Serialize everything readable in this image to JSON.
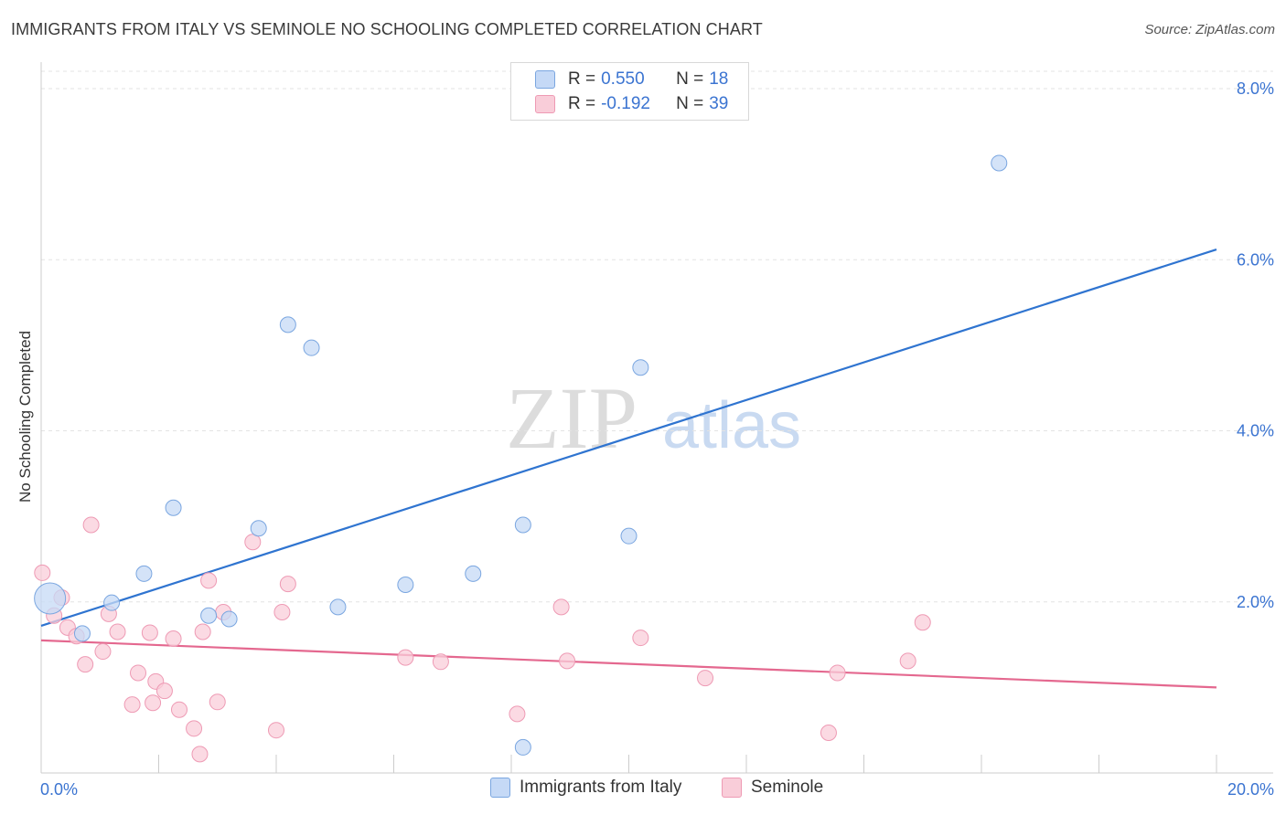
{
  "title": "IMMIGRANTS FROM ITALY VS SEMINOLE NO SCHOOLING COMPLETED CORRELATION CHART",
  "source": "Source: ZipAtlas.com",
  "watermark": {
    "zip": "ZIP",
    "atlas": "atlas"
  },
  "legend": {
    "r_label": "R =",
    "n_label": "N =",
    "rows": [
      {
        "r": "0.550",
        "n": "18",
        "swatch_fill": "#c5d9f6",
        "swatch_stroke": "#7aa6e0"
      },
      {
        "r": "-0.192",
        "n": "39",
        "swatch_fill": "#f9cdd9",
        "swatch_stroke": "#ee9ab4"
      }
    ]
  },
  "bottom_legend": [
    {
      "label": "Immigrants from Italy",
      "fill": "#c5d9f6",
      "stroke": "#7aa6e0"
    },
    {
      "label": "Seminole",
      "fill": "#f9cdd9",
      "stroke": "#ee9ab4"
    }
  ],
  "chart_data": {
    "type": "scatter",
    "title": "IMMIGRANTS FROM ITALY VS SEMINOLE NO SCHOOLING COMPLETED CORRELATION CHART",
    "xlabel": "",
    "ylabel": "No Schooling Completed",
    "xlim": [
      0,
      20
    ],
    "ylim": [
      0,
      8.2
    ],
    "x_tick_labels": [
      "0.0%",
      "20.0%"
    ],
    "y_ticks": [
      2,
      4,
      6,
      8
    ],
    "y_tick_labels": [
      "2.0%",
      "4.0%",
      "6.0%",
      "8.0%"
    ],
    "series": [
      {
        "name": "Immigrants from Italy",
        "color": "#7aa6e0",
        "fill": "#c5d9f6",
        "line_color": "#2f74d0",
        "trend": {
          "x": [
            0,
            20
          ],
          "y": [
            1.72,
            6.12
          ]
        },
        "points": [
          {
            "x": 0.15,
            "y": 2.04,
            "big": true
          },
          {
            "x": 0.7,
            "y": 1.63
          },
          {
            "x": 1.2,
            "y": 1.99
          },
          {
            "x": 1.75,
            "y": 2.33
          },
          {
            "x": 2.25,
            "y": 3.1
          },
          {
            "x": 2.85,
            "y": 1.84
          },
          {
            "x": 3.2,
            "y": 1.8
          },
          {
            "x": 3.7,
            "y": 2.86
          },
          {
            "x": 4.2,
            "y": 5.24
          },
          {
            "x": 4.6,
            "y": 4.97
          },
          {
            "x": 5.05,
            "y": 1.94
          },
          {
            "x": 6.2,
            "y": 2.2
          },
          {
            "x": 7.35,
            "y": 2.33
          },
          {
            "x": 8.2,
            "y": 0.3
          },
          {
            "x": 8.2,
            "y": 2.9
          },
          {
            "x": 10.0,
            "y": 2.77
          },
          {
            "x": 10.2,
            "y": 4.74
          },
          {
            "x": 16.3,
            "y": 7.13
          }
        ]
      },
      {
        "name": "Seminole",
        "color": "#ee9ab4",
        "fill": "#f9cdd9",
        "line_color": "#e4688f",
        "trend": {
          "x": [
            0,
            20
          ],
          "y": [
            1.55,
            1.0
          ]
        },
        "points": [
          {
            "x": 0.02,
            "y": 2.34
          },
          {
            "x": 0.22,
            "y": 1.84
          },
          {
            "x": 0.35,
            "y": 2.05
          },
          {
            "x": 0.45,
            "y": 1.7
          },
          {
            "x": 0.6,
            "y": 1.6
          },
          {
            "x": 0.75,
            "y": 1.27
          },
          {
            "x": 0.85,
            "y": 2.9
          },
          {
            "x": 1.05,
            "y": 1.42
          },
          {
            "x": 1.15,
            "y": 1.86
          },
          {
            "x": 1.3,
            "y": 1.65
          },
          {
            "x": 1.65,
            "y": 1.17
          },
          {
            "x": 1.9,
            "y": 0.82
          },
          {
            "x": 1.55,
            "y": 0.8
          },
          {
            "x": 1.85,
            "y": 1.64
          },
          {
            "x": 1.95,
            "y": 1.07
          },
          {
            "x": 2.1,
            "y": 0.96
          },
          {
            "x": 2.25,
            "y": 1.57
          },
          {
            "x": 2.35,
            "y": 0.74
          },
          {
            "x": 2.6,
            "y": 0.52
          },
          {
            "x": 2.7,
            "y": 0.22
          },
          {
            "x": 2.75,
            "y": 1.65
          },
          {
            "x": 2.85,
            "y": 2.25
          },
          {
            "x": 3.0,
            "y": 0.83
          },
          {
            "x": 3.1,
            "y": 1.88
          },
          {
            "x": 3.6,
            "y": 2.7
          },
          {
            "x": 4.0,
            "y": 0.5
          },
          {
            "x": 4.2,
            "y": 2.21
          },
          {
            "x": 4.1,
            "y": 1.88
          },
          {
            "x": 6.2,
            "y": 1.35
          },
          {
            "x": 6.8,
            "y": 1.3
          },
          {
            "x": 8.1,
            "y": 0.69
          },
          {
            "x": 8.85,
            "y": 1.94
          },
          {
            "x": 8.95,
            "y": 1.31
          },
          {
            "x": 10.2,
            "y": 1.58
          },
          {
            "x": 11.3,
            "y": 1.11
          },
          {
            "x": 13.4,
            "y": 0.47
          },
          {
            "x": 13.55,
            "y": 1.17
          },
          {
            "x": 14.75,
            "y": 1.31
          },
          {
            "x": 15.0,
            "y": 1.76
          }
        ]
      }
    ]
  }
}
